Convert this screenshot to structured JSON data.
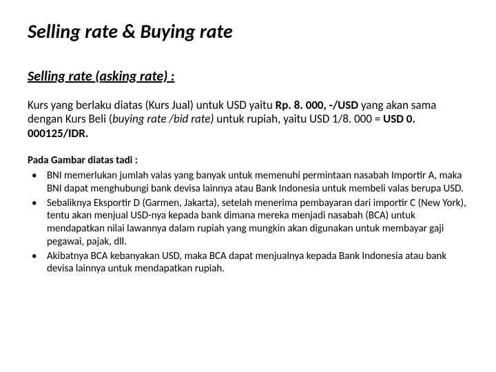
{
  "title": "Selling rate & Buying rate",
  "subheading": "Selling rate  (asking rate) :",
  "para": {
    "pre": "Kurs yang berlaku diatas (Kurs Jual) untuk USD yaitu ",
    "bold1": "Rp. 8. 000, -/USD",
    "mid1": " yang akan sama dengan Kurs Beli (",
    "italic": "buying rate /bid rate)",
    "mid2": " untuk rupiah, yaitu USD 1/8. 000 = ",
    "bold2": "USD 0. 000125/IDR."
  },
  "list_intro": "Pada Gambar diatas tadi :",
  "bullets": [
    "BNI memerlukan jumlah valas yang banyak untuk memenuhi permintaan nasabah Importir A, maka BNI dapat menghubungi bank devisa lainnya atau Bank Indonesia untuk membeli valas berupa USD.",
    "Sebaliknya Eksportir D (Garmen, Jakarta), setelah menerima pembayaran dari importir C (New York), tentu akan menjual USD-nya kepada bank dimana mereka menjadi nasabah (BCA) untuk mendapatkan nilai lawannya dalam rupiah  yang mungkin akan digunakan untuk membayar gaji pegawai, pajak, dll.",
    "Akibatnya BCA kebanyakan USD, maka BCA dapat menjualnya kepada Bank Indonesia atau bank devisa lainnya untuk mendapatkan rupiah."
  ]
}
